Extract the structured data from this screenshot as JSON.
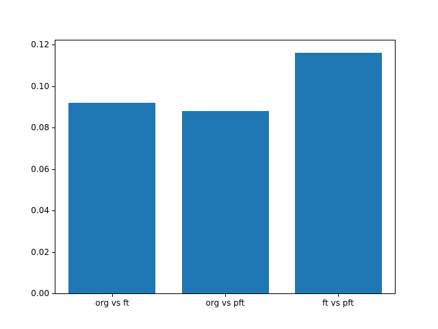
{
  "chart_data": {
    "type": "bar",
    "title": "",
    "xlabel": "",
    "ylabel": "",
    "categories": [
      "org vs ft",
      "org vs pft",
      "ft vs pft"
    ],
    "values": [
      0.092,
      0.088,
      0.116
    ],
    "bar_color": "#1f77b4",
    "axis_color": "#000000",
    "background_color": "#ffffff",
    "ylim": [
      0,
      0.122
    ],
    "grid": false,
    "legend": false,
    "yticks": [
      {
        "label": "0.00",
        "value": 0.0
      },
      {
        "label": "0.02",
        "value": 0.02
      },
      {
        "label": "0.04",
        "value": 0.04
      },
      {
        "label": "0.06",
        "value": 0.06
      },
      {
        "label": "0.08",
        "value": 0.08
      },
      {
        "label": "0.10",
        "value": 0.1
      },
      {
        "label": "0.12",
        "value": 0.12
      }
    ]
  }
}
